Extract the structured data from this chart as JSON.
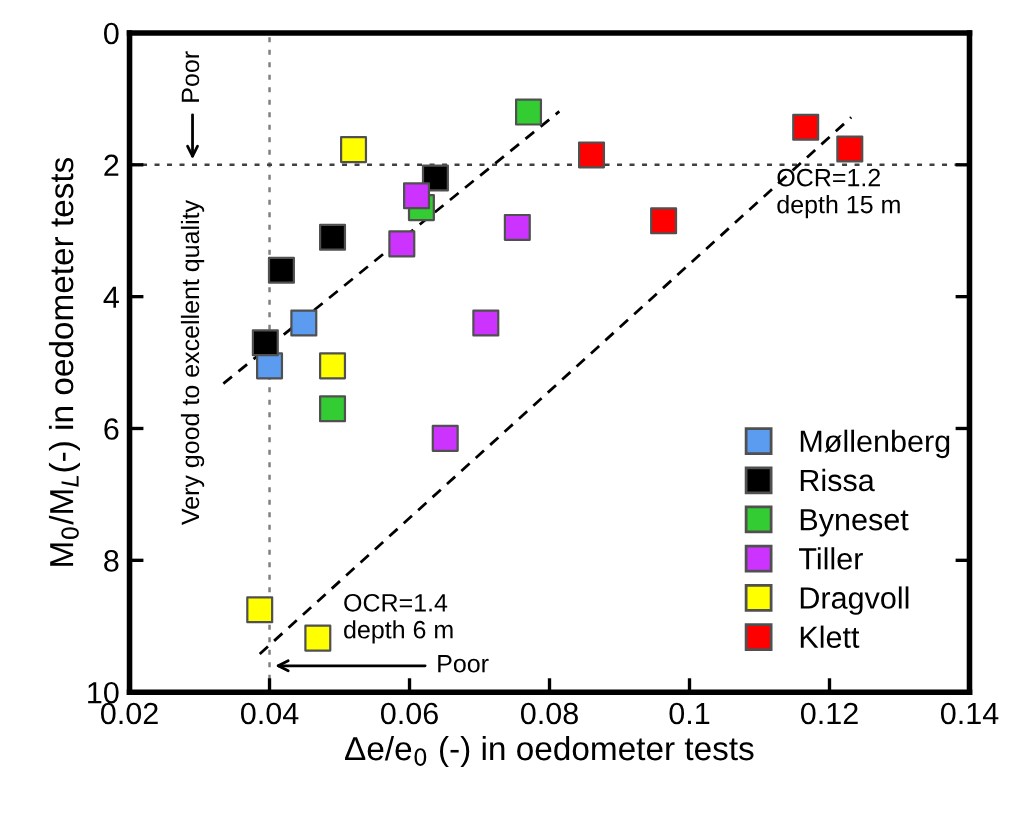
{
  "chart_data": {
    "type": "scatter",
    "xlabel": "Δe/e$_{0}$ (-) in oedometer tests",
    "ylabel": "M$_{0}$/M$_{L}$(-) in oedometer tests",
    "xlim": [
      0.02,
      0.14
    ],
    "xticks": [
      0.02,
      0.04,
      0.06,
      0.08,
      0.1,
      0.12,
      0.14
    ],
    "ylim": [
      10,
      0
    ],
    "yticks": [
      0,
      2,
      4,
      6,
      8,
      10
    ],
    "marker": "square",
    "legend": "lower right",
    "grid": false,
    "series": [
      {
        "name": "Møllenberg",
        "color": "#5b9bf0",
        "x": [
          0.04,
          0.0449
        ],
        "values": [
          5.05,
          4.4
        ]
      },
      {
        "name": "Rissa",
        "color": "#000000",
        "x": [
          0.0394,
          0.0417,
          0.049,
          0.0637
        ],
        "values": [
          4.7,
          3.6,
          3.1,
          2.2
        ]
      },
      {
        "name": "Byneset",
        "color": "#33cc33",
        "x": [
          0.077,
          0.0617,
          0.049
        ],
        "values": [
          1.2,
          2.65,
          5.7
        ]
      },
      {
        "name": "Tiller",
        "color": "#cc33ff",
        "x": [
          0.061,
          0.0589,
          0.0754,
          0.0709,
          0.0651
        ],
        "values": [
          2.47,
          3.2,
          2.95,
          4.4,
          6.15
        ]
      },
      {
        "name": "Dragvoll",
        "color": "#ffff00",
        "x": [
          0.052,
          0.049,
          0.0386,
          0.0469
        ],
        "values": [
          1.77,
          5.05,
          8.75,
          9.18
        ]
      },
      {
        "name": "Klett",
        "color": "#ff0000",
        "x": [
          0.086,
          0.0963,
          0.1166,
          0.1229
        ],
        "values": [
          1.85,
          2.85,
          1.43,
          1.76
        ]
      },
      {
        "type": "line",
        "marker": "none",
        "line_style": "dashed",
        "color": "#000000",
        "x": [
          0.0334,
          0.0814
        ],
        "values": [
          5.32,
          1.19
        ]
      },
      {
        "type": "line",
        "marker": "none",
        "line_style": "dashed",
        "color": "#000000",
        "x": [
          0.0386,
          0.1231
        ],
        "values": [
          9.42,
          1.28
        ]
      }
    ],
    "ref_lines": [
      {
        "axis": "x",
        "value": 0.04,
        "color": "#808080",
        "line_style": "dotted"
      },
      {
        "axis": "y",
        "value": 2,
        "color": "#404040",
        "line_style": "dotted"
      }
    ],
    "annotations": [
      {
        "text": "Poor",
        "x": 0.029,
        "y": 2
      },
      "Very good to excellent quality",
      {
        "text": "Poor",
        "x": 0.04,
        "y": 9.6
      },
      "OCR=1.2\ndepth 15 m",
      {
        "text": "OCR=1.4\ndepth 6 m",
        "x": 0.0505,
        "y": 8.5
      }
    ]
  }
}
